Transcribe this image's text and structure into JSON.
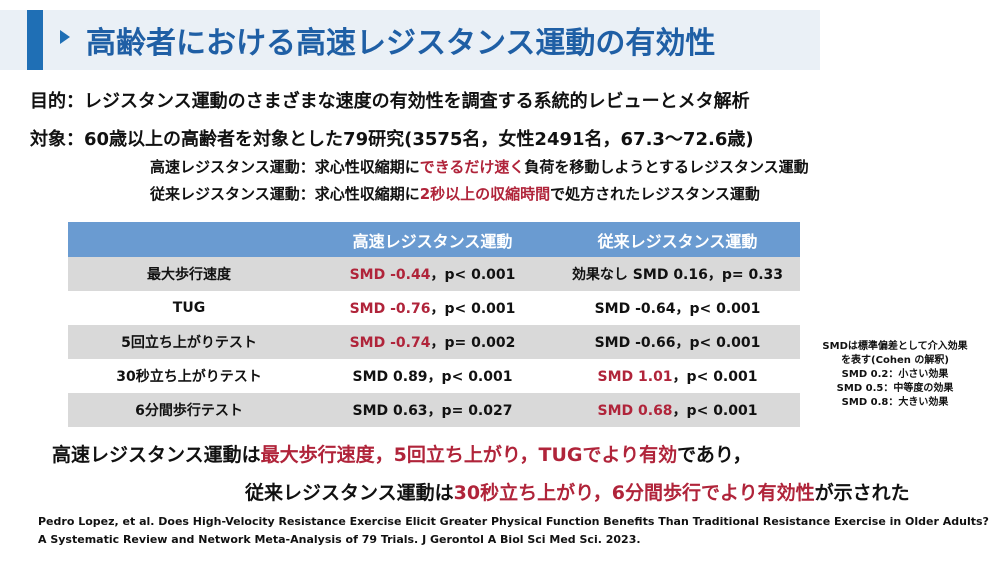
{
  "title": "高齢者における高速レジスタンス運動の有効性",
  "purpose": "目的：レジスタンス運動のさまざまな速度の有効性を調査する系統的レビューとメタ解析",
  "subject": "対象：60歳以上の高齢者を対象とした79研究(3575名，女性2491名，67.3～72.6歳)",
  "def_high": {
    "pre": "高速レジスタンス運動：求心性収縮期に",
    "hl": "できるだけ速く",
    "post": "負荷を移動しようとするレジスタンス運動"
  },
  "def_trad": {
    "pre": "従来レジスタンス運動：求心性収縮期に",
    "hl": "2秒以上の収縮時間",
    "post": "で処方されたレジスタンス運動"
  },
  "table": {
    "headers": [
      "",
      "高速レジスタンス運動",
      "従来レジスタンス運動"
    ],
    "rows": [
      {
        "label": "最大歩行速度",
        "high": {
          "smd": "SMD -0.44",
          "p": "，p< 0.001",
          "red": true
        },
        "trad": {
          "smd": "効果なし SMD 0.16",
          "p": "，p= 0.33",
          "red": false
        }
      },
      {
        "label": "TUG",
        "high": {
          "smd": "SMD -0.76",
          "p": "，p< 0.001",
          "red": true
        },
        "trad": {
          "smd": "SMD -0.64",
          "p": "，p< 0.001",
          "red": false
        }
      },
      {
        "label": "5回立ち上がりテスト",
        "high": {
          "smd": "SMD -0.74",
          "p": "，p= 0.002",
          "red": true
        },
        "trad": {
          "smd": "SMD -0.66",
          "p": "，p< 0.001",
          "red": false
        }
      },
      {
        "label": "30秒立ち上がりテスト",
        "high": {
          "smd": "SMD 0.89",
          "p": "，p< 0.001",
          "red": false
        },
        "trad": {
          "smd": "SMD 1.01",
          "p": "，p< 0.001",
          "red": true
        }
      },
      {
        "label": "6分間歩行テスト",
        "high": {
          "smd": "SMD 0.63",
          "p": "，p= 0.027",
          "red": false
        },
        "trad": {
          "smd": "SMD 0.68",
          "p": "，p< 0.001",
          "red": true
        }
      }
    ]
  },
  "note": {
    "line1": "SMDは標準偏差として介入効果",
    "line2": "を表す(Cohen の解釈)",
    "line3": "SMD 0.2：小さい効果",
    "line4": "SMD 0.5：中等度の効果",
    "line5": "SMD 0.8：大きい効果"
  },
  "conclusion1": {
    "pre": "高速レジスタンス運動は",
    "hl": "最大歩行速度，5回立ち上がり，TUGでより有効",
    "post": "であり，"
  },
  "conclusion2": {
    "pre": "従来レジスタンス運動は",
    "hl": "30秒立ち上がり，6分間歩行でより有効性",
    "post": "が示された"
  },
  "reference": {
    "line1": "Pedro Lopez, et al. Does High-Velocity Resistance Exercise Elicit Greater Physical Function Benefits Than Traditional Resistance Exercise in Older Adults?",
    "line2": "A Systematic Review and Network Meta-Analysis of 79 Trials. J Gerontol A Biol Sci Med Sci. 2023."
  },
  "colors": {
    "accent": "#1f6fb5",
    "title": "#1f5fa5",
    "header": "#6a9bd1",
    "highlight": "#b0243a",
    "row_gray": "#d9d9d9"
  }
}
